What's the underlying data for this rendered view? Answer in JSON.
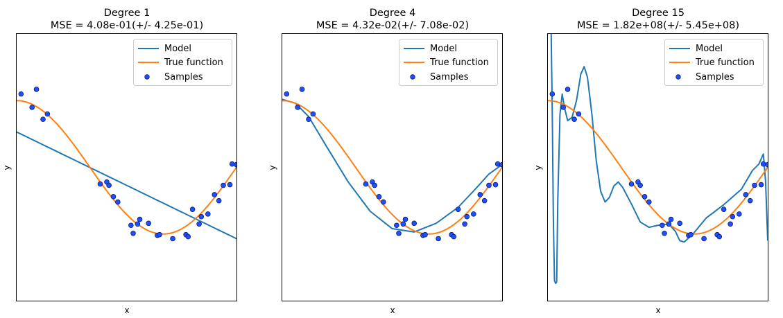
{
  "colors": {
    "model": "#1f77b4",
    "true_function": "#ff7f0e",
    "samples_fill": "#1f4fff",
    "samples_edge": "#0a1d6a"
  },
  "chart_data": [
    {
      "type": "line",
      "title": "Degree 1",
      "subtitle": "MSE = 4.08e-01(+/- 4.25e-01)",
      "xlabel": "x",
      "ylabel": "y",
      "xlim": [
        0,
        1
      ],
      "ylim": [
        -2,
        2
      ],
      "grid": false,
      "legend": {
        "placement": "top-right",
        "entries": [
          "Model",
          "True function",
          "Samples"
        ]
      },
      "series": [
        {
          "name": "Model",
          "kind": "polynomial",
          "degree": 1,
          "coefficients": [
            0.53,
            -1.6
          ]
        },
        {
          "name": "True function",
          "kind": "function",
          "expression": "cos(1.5*pi*x)"
        },
        {
          "name": "Samples",
          "kind": "scatter"
        }
      ]
    },
    {
      "type": "line",
      "title": "Degree 4",
      "subtitle": "MSE = 4.32e-02(+/- 7.08e-02)",
      "xlabel": "x",
      "ylabel": "y",
      "xlim": [
        0,
        1
      ],
      "ylim": [
        -2,
        2
      ],
      "grid": false,
      "legend": {
        "placement": "top-right",
        "entries": [
          "Model",
          "True function",
          "Samples"
        ]
      },
      "series": [
        {
          "name": "Model",
          "kind": "polynomial",
          "degree": 4,
          "points": [
            [
              0,
              1.02
            ],
            [
              0.06,
              0.96
            ],
            [
              0.12,
              0.76
            ],
            [
              0.2,
              0.32
            ],
            [
              0.3,
              -0.22
            ],
            [
              0.4,
              -0.66
            ],
            [
              0.5,
              -0.92
            ],
            [
              0.6,
              -0.97
            ],
            [
              0.7,
              -0.84
            ],
            [
              0.8,
              -0.6
            ],
            [
              0.88,
              -0.32
            ],
            [
              0.94,
              -0.1
            ],
            [
              1.0,
              0.04
            ]
          ]
        },
        {
          "name": "True function",
          "kind": "function",
          "expression": "cos(1.5*pi*x)"
        },
        {
          "name": "Samples",
          "kind": "scatter"
        }
      ]
    },
    {
      "type": "line",
      "title": "Degree 15",
      "subtitle": "MSE = 1.82e+08(+/- 5.45e+08)",
      "xlabel": "x",
      "ylabel": "y",
      "xlim": [
        0,
        1
      ],
      "ylim": [
        -2,
        2
      ],
      "grid": false,
      "legend": {
        "placement": "top-right",
        "entries": [
          "Model",
          "True function",
          "Samples"
        ]
      },
      "series": [
        {
          "name": "Model",
          "kind": "polynomial",
          "degree": 15,
          "points": [
            [
              0.015,
              2.0
            ],
            [
              0.02,
              0.8
            ],
            [
              0.025,
              -0.8
            ],
            [
              0.03,
              -1.7
            ],
            [
              0.035,
              -1.74
            ],
            [
              0.04,
              -1.72
            ],
            [
              0.045,
              -0.5
            ],
            [
              0.055,
              0.8
            ],
            [
              0.065,
              1.1
            ],
            [
              0.075,
              0.9
            ],
            [
              0.09,
              0.7
            ],
            [
              0.11,
              0.75
            ],
            [
              0.13,
              1.0
            ],
            [
              0.15,
              1.4
            ],
            [
              0.165,
              1.51
            ],
            [
              0.18,
              1.35
            ],
            [
              0.2,
              0.8
            ],
            [
              0.22,
              0.1
            ],
            [
              0.24,
              -0.36
            ],
            [
              0.26,
              -0.52
            ],
            [
              0.28,
              -0.45
            ],
            [
              0.3,
              -0.28
            ],
            [
              0.32,
              -0.22
            ],
            [
              0.34,
              -0.3
            ],
            [
              0.38,
              -0.55
            ],
            [
              0.42,
              -0.82
            ],
            [
              0.46,
              -0.9
            ],
            [
              0.5,
              -0.87
            ],
            [
              0.55,
              -0.85
            ],
            [
              0.58,
              -0.96
            ],
            [
              0.6,
              -1.1
            ],
            [
              0.62,
              -1.12
            ],
            [
              0.66,
              -1.0
            ],
            [
              0.72,
              -0.76
            ],
            [
              0.8,
              -0.56
            ],
            [
              0.88,
              -0.33
            ],
            [
              0.93,
              -0.05
            ],
            [
              0.96,
              0.05
            ],
            [
              0.98,
              0.2
            ],
            [
              0.99,
              -0.2
            ],
            [
              1.0,
              -1.1
            ]
          ]
        },
        {
          "name": "True function",
          "kind": "function",
          "expression": "cos(1.5*pi*x)"
        },
        {
          "name": "Samples",
          "kind": "scatter"
        }
      ]
    }
  ],
  "samples": {
    "x": [
      0.02,
      0.07,
      0.09,
      0.12,
      0.14,
      0.38,
      0.41,
      0.42,
      0.44,
      0.46,
      0.52,
      0.53,
      0.55,
      0.56,
      0.6,
      0.64,
      0.65,
      0.71,
      0.77,
      0.78,
      0.8,
      0.83,
      0.84,
      0.87,
      0.9,
      0.92,
      0.94,
      0.97,
      0.98,
      1.0
    ],
    "y": [
      1.1,
      0.9,
      1.17,
      0.72,
      0.8,
      -0.25,
      -0.22,
      -0.27,
      -0.44,
      -0.52,
      -0.87,
      -0.99,
      -0.85,
      -0.78,
      -0.84,
      -1.02,
      -1.01,
      -1.07,
      -1.01,
      -1.04,
      -0.63,
      -0.85,
      -0.74,
      -0.7,
      -0.41,
      -0.5,
      -0.27,
      -0.26,
      0.05,
      0.04
    ]
  }
}
